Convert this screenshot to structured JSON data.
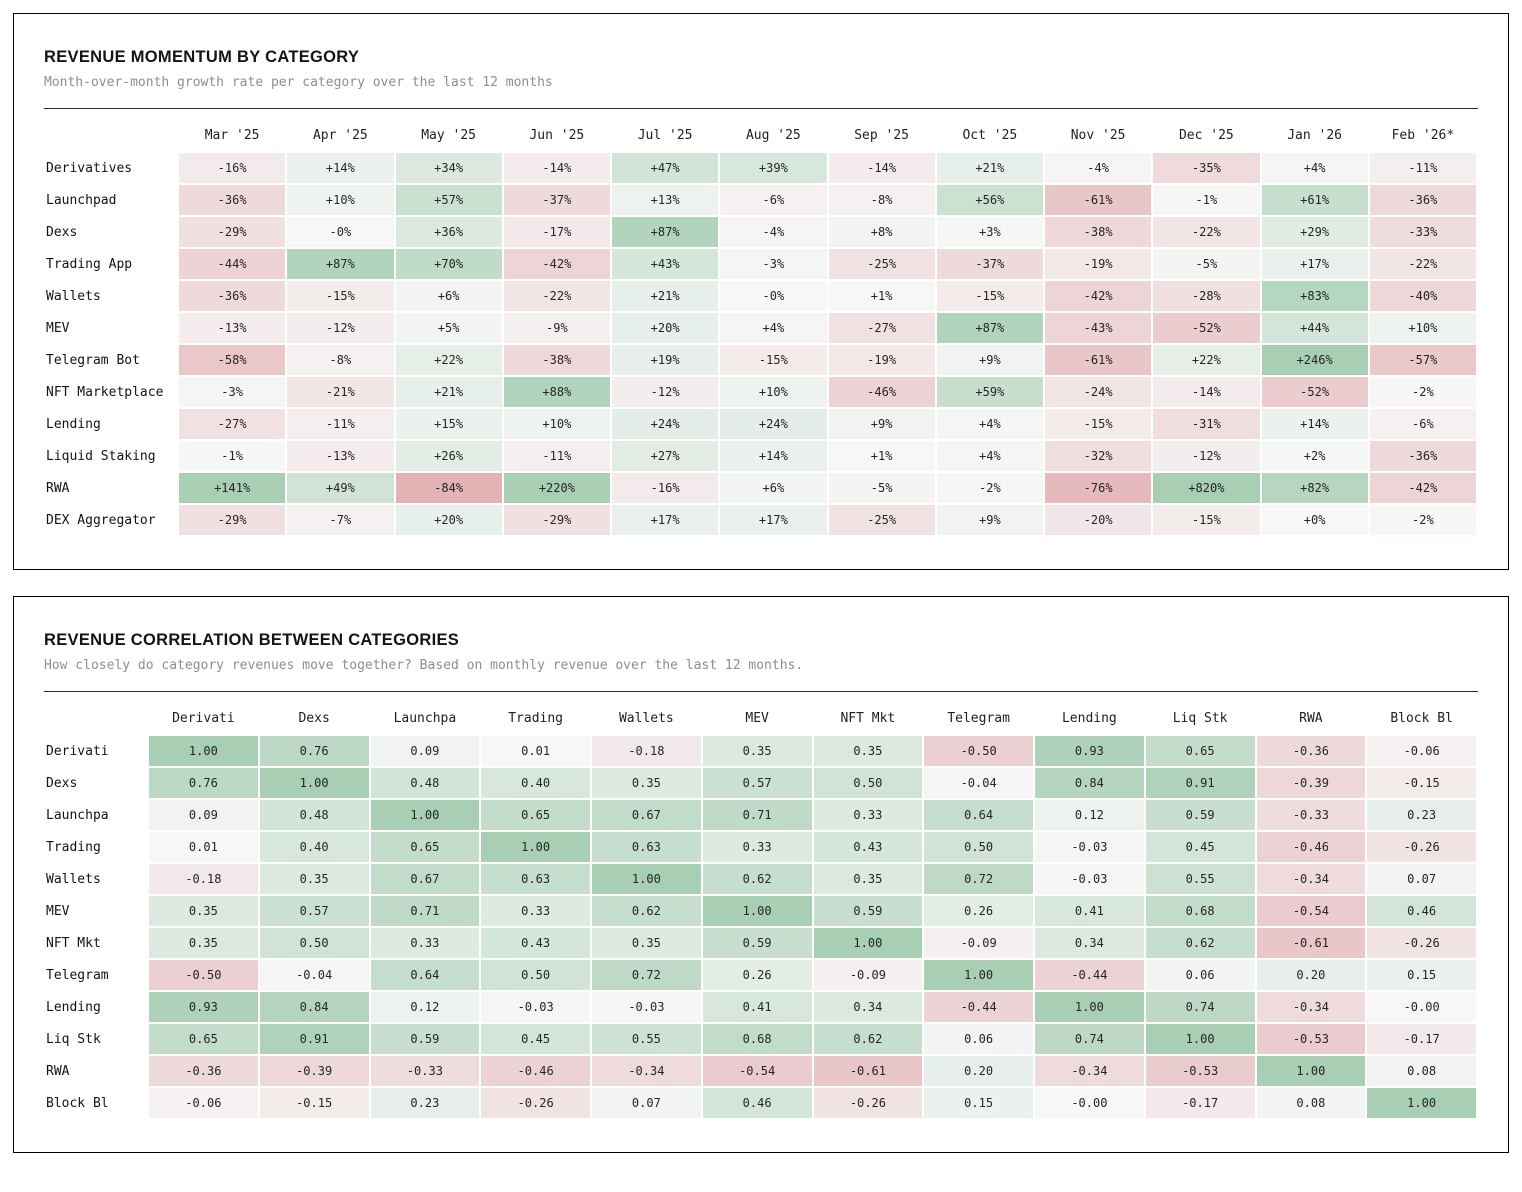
{
  "colors": {
    "scale_start": "#f7f7f7",
    "scale_positive_end": "#a8cfb4",
    "scale_negative_end": "#e0a6aa",
    "card_border": "#000000",
    "title_text": "#141414",
    "subtitle_text": "#8e8e8e"
  },
  "chart_data": [
    {
      "type": "heatmap",
      "id": "momentum",
      "title": "REVENUE MOMENTUM BY CATEGORY",
      "subtitle": "Month-over-month growth rate per category over the last 12 months",
      "value_format": "signed_percent",
      "color_scale_domain": [
        -100,
        100
      ],
      "columns": [
        "Mar '25",
        "Apr '25",
        "May '25",
        "Jun '25",
        "Jul '25",
        "Aug '25",
        "Sep '25",
        "Oct '25",
        "Nov '25",
        "Dec '25",
        "Jan '26",
        "Feb '26*"
      ],
      "rows": [
        {
          "label": "Derivatives",
          "cells": [
            "-16%",
            "+14%",
            "+34%",
            "-14%",
            "+47%",
            "+39%",
            "-14%",
            "+21%",
            "-4%",
            "-35%",
            "+4%",
            "-11%"
          ]
        },
        {
          "label": "Launchpad",
          "cells": [
            "-36%",
            "+10%",
            "+57%",
            "-37%",
            "+13%",
            "-6%",
            "-8%",
            "+56%",
            "-61%",
            "-1%",
            "+61%",
            "-36%"
          ]
        },
        {
          "label": "Dexs",
          "cells": [
            "-29%",
            "-0%",
            "+36%",
            "-17%",
            "+87%",
            "-4%",
            "+8%",
            "+3%",
            "-38%",
            "-22%",
            "+29%",
            "-33%"
          ]
        },
        {
          "label": "Trading App",
          "cells": [
            "-44%",
            "+87%",
            "+70%",
            "-42%",
            "+43%",
            "-3%",
            "-25%",
            "-37%",
            "-19%",
            "-5%",
            "+17%",
            "-22%"
          ]
        },
        {
          "label": "Wallets",
          "cells": [
            "-36%",
            "-15%",
            "+6%",
            "-22%",
            "+21%",
            "-0%",
            "+1%",
            "-15%",
            "-42%",
            "-28%",
            "+83%",
            "-40%"
          ]
        },
        {
          "label": "MEV",
          "cells": [
            "-13%",
            "-12%",
            "+5%",
            "-9%",
            "+20%",
            "+4%",
            "-27%",
            "+87%",
            "-43%",
            "-52%",
            "+44%",
            "+10%"
          ]
        },
        {
          "label": "Telegram Bot",
          "cells": [
            "-58%",
            "-8%",
            "+22%",
            "-38%",
            "+19%",
            "-15%",
            "-19%",
            "+9%",
            "-61%",
            "+22%",
            "+246%",
            "-57%"
          ]
        },
        {
          "label": "NFT Marketplace",
          "cells": [
            "-3%",
            "-21%",
            "+21%",
            "+88%",
            "-12%",
            "+10%",
            "-46%",
            "+59%",
            "-24%",
            "-14%",
            "-52%",
            "-2%"
          ]
        },
        {
          "label": "Lending",
          "cells": [
            "-27%",
            "-11%",
            "+15%",
            "+10%",
            "+24%",
            "+24%",
            "+9%",
            "+4%",
            "-15%",
            "-31%",
            "+14%",
            "-6%"
          ]
        },
        {
          "label": "Liquid Staking",
          "cells": [
            "-1%",
            "-13%",
            "+26%",
            "-11%",
            "+27%",
            "+14%",
            "+1%",
            "+4%",
            "-32%",
            "-12%",
            "+2%",
            "-36%"
          ]
        },
        {
          "label": "RWA",
          "cells": [
            "+141%",
            "+49%",
            "-84%",
            "+220%",
            "-16%",
            "+6%",
            "-5%",
            "-2%",
            "-76%",
            "+820%",
            "+82%",
            "-42%"
          ]
        },
        {
          "label": "DEX Aggregator",
          "cells": [
            "-29%",
            "-7%",
            "+20%",
            "-29%",
            "+17%",
            "+17%",
            "-25%",
            "+9%",
            "-20%",
            "-15%",
            "+0%",
            "-2%"
          ]
        }
      ]
    },
    {
      "type": "heatmap",
      "id": "correlation",
      "title": "REVENUE CORRELATION BETWEEN CATEGORIES",
      "subtitle": "How closely do category revenues move together? Based on monthly revenue over the last 12 months.",
      "value_format": "correlation",
      "color_scale_domain": [
        -1,
        1
      ],
      "columns": [
        "Derivati",
        "Dexs",
        "Launchpa",
        "Trading",
        "Wallets",
        "MEV",
        "NFT Mkt",
        "Telegram",
        "Lending",
        "Liq Stk",
        "RWA",
        "Block Bl"
      ],
      "rows": [
        {
          "label": "Derivati",
          "cells": [
            "1.00",
            "0.76",
            "0.09",
            "0.01",
            "-0.18",
            "0.35",
            "0.35",
            "-0.50",
            "0.93",
            "0.65",
            "-0.36",
            "-0.06"
          ]
        },
        {
          "label": "Dexs",
          "cells": [
            "0.76",
            "1.00",
            "0.48",
            "0.40",
            "0.35",
            "0.57",
            "0.50",
            "-0.04",
            "0.84",
            "0.91",
            "-0.39",
            "-0.15"
          ]
        },
        {
          "label": "Launchpa",
          "cells": [
            "0.09",
            "0.48",
            "1.00",
            "0.65",
            "0.67",
            "0.71",
            "0.33",
            "0.64",
            "0.12",
            "0.59",
            "-0.33",
            "0.23"
          ]
        },
        {
          "label": "Trading",
          "cells": [
            "0.01",
            "0.40",
            "0.65",
            "1.00",
            "0.63",
            "0.33",
            "0.43",
            "0.50",
            "-0.03",
            "0.45",
            "-0.46",
            "-0.26"
          ]
        },
        {
          "label": "Wallets",
          "cells": [
            "-0.18",
            "0.35",
            "0.67",
            "0.63",
            "1.00",
            "0.62",
            "0.35",
            "0.72",
            "-0.03",
            "0.55",
            "-0.34",
            "0.07"
          ]
        },
        {
          "label": "MEV",
          "cells": [
            "0.35",
            "0.57",
            "0.71",
            "0.33",
            "0.62",
            "1.00",
            "0.59",
            "0.26",
            "0.41",
            "0.68",
            "-0.54",
            "0.46"
          ]
        },
        {
          "label": "NFT Mkt",
          "cells": [
            "0.35",
            "0.50",
            "0.33",
            "0.43",
            "0.35",
            "0.59",
            "1.00",
            "-0.09",
            "0.34",
            "0.62",
            "-0.61",
            "-0.26"
          ]
        },
        {
          "label": "Telegram",
          "cells": [
            "-0.50",
            "-0.04",
            "0.64",
            "0.50",
            "0.72",
            "0.26",
            "-0.09",
            "1.00",
            "-0.44",
            "0.06",
            "0.20",
            "0.15"
          ]
        },
        {
          "label": "Lending",
          "cells": [
            "0.93",
            "0.84",
            "0.12",
            "-0.03",
            "-0.03",
            "0.41",
            "0.34",
            "-0.44",
            "1.00",
            "0.74",
            "-0.34",
            "-0.00"
          ]
        },
        {
          "label": "Liq Stk",
          "cells": [
            "0.65",
            "0.91",
            "0.59",
            "0.45",
            "0.55",
            "0.68",
            "0.62",
            "0.06",
            "0.74",
            "1.00",
            "-0.53",
            "-0.17"
          ]
        },
        {
          "label": "RWA",
          "cells": [
            "-0.36",
            "-0.39",
            "-0.33",
            "-0.46",
            "-0.34",
            "-0.54",
            "-0.61",
            "0.20",
            "-0.34",
            "-0.53",
            "1.00",
            "0.08"
          ]
        },
        {
          "label": "Block Bl",
          "cells": [
            "-0.06",
            "-0.15",
            "0.23",
            "-0.26",
            "0.07",
            "0.46",
            "-0.26",
            "0.15",
            "-0.00",
            "-0.17",
            "0.08",
            "1.00"
          ]
        }
      ]
    }
  ]
}
